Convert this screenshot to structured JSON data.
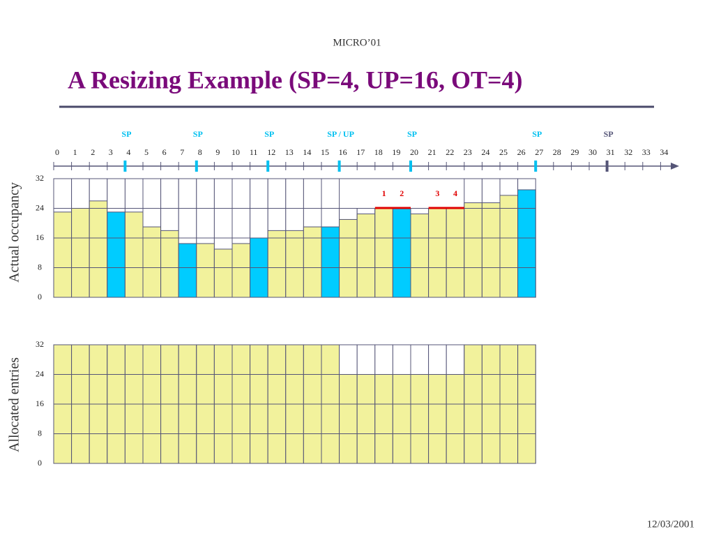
{
  "header": "MICRO’01",
  "title": "A Resizing Example (SP=4, UP=16, OT=4)",
  "date": "12/03/2001",
  "timeline": {
    "ticks": [
      0,
      1,
      2,
      3,
      4,
      5,
      6,
      7,
      8,
      9,
      10,
      11,
      12,
      13,
      14,
      15,
      16,
      17,
      18,
      19,
      20,
      21,
      22,
      23,
      24,
      25,
      26,
      27,
      28,
      29,
      30,
      31,
      32,
      33,
      34
    ],
    "markers": [
      {
        "tick": 4,
        "label": "SP",
        "color": "#00c0f0"
      },
      {
        "tick": 8,
        "label": "SP",
        "color": "#00c0f0"
      },
      {
        "tick": 12,
        "label": "SP",
        "color": "#00c0f0"
      },
      {
        "tick": 16,
        "label": "SP / UP",
        "color": "#00c0f0"
      },
      {
        "tick": 20,
        "label": "SP",
        "color": "#00c0f0"
      },
      {
        "tick": 27,
        "label": "SP",
        "color": "#00c0f0"
      },
      {
        "tick": 31,
        "label": "SP",
        "color": "#555577"
      }
    ]
  },
  "chart_data": [
    {
      "type": "bar",
      "ylabel": "Actual occupancy",
      "ylim": [
        0,
        32
      ],
      "yticks": [
        0,
        8,
        16,
        24,
        32
      ],
      "grid": true,
      "values": [
        23,
        24,
        26,
        23,
        23,
        19,
        18,
        14.5,
        14.5,
        13,
        14.5,
        16,
        18,
        18,
        19,
        19,
        21,
        22.5,
        24,
        24,
        22.5,
        24,
        24,
        25.5,
        25.5,
        27.5,
        29
      ],
      "colors": [
        "#f2f29c",
        "#f2f29c",
        "#f2f29c",
        "#00ccff",
        "#f2f29c",
        "#f2f29c",
        "#f2f29c",
        "#00ccff",
        "#f2f29c",
        "#f2f29c",
        "#f2f29c",
        "#00ccff",
        "#f2f29c",
        "#f2f29c",
        "#f2f29c",
        "#00ccff",
        "#f2f29c",
        "#f2f29c",
        "#f2f29c",
        "#00ccff",
        "#f2f29c",
        "#f2f29c",
        "#f2f29c",
        "#f2f29c",
        "#f2f29c",
        "#f2f29c",
        "#00ccff"
      ],
      "annotations": [
        "1",
        "2",
        "3",
        "4"
      ]
    },
    {
      "type": "bar",
      "ylabel": "Allocated entries",
      "ylim": [
        0,
        32
      ],
      "yticks": [
        0,
        8,
        16,
        24,
        32
      ],
      "grid": true,
      "values": [
        32,
        32,
        32,
        32,
        32,
        32,
        32,
        32,
        32,
        32,
        32,
        32,
        32,
        32,
        32,
        32,
        24,
        24,
        24,
        24,
        24,
        24,
        24,
        32,
        32,
        32,
        32
      ],
      "color": "#f2f29c"
    }
  ]
}
